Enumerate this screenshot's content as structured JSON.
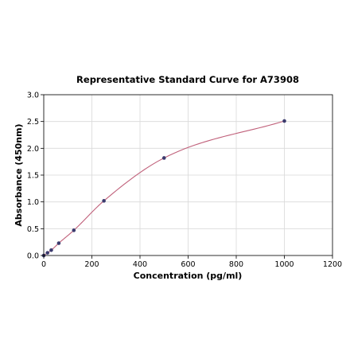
{
  "chart_data": {
    "type": "scatter",
    "title": "Representative Standard Curve for A73908",
    "xlabel": "Concentration (pg/ml)",
    "ylabel": "Absorbance (450nm)",
    "xlim": [
      0,
      1200
    ],
    "ylim": [
      0,
      3.0
    ],
    "xticks": [
      0,
      200,
      400,
      600,
      800,
      1000,
      1200
    ],
    "yticks": [
      0.0,
      0.5,
      1.0,
      1.5,
      2.0,
      2.5,
      3.0
    ],
    "xtick_labels": [
      "0",
      "200",
      "400",
      "600",
      "800",
      "1000",
      "1200"
    ],
    "ytick_labels": [
      "0.0",
      "0.5",
      "1.0",
      "1.5",
      "2.0",
      "2.5",
      "3.0"
    ],
    "grid": true,
    "series": [
      {
        "x": [
          0,
          15.6,
          31.25,
          62.5,
          125,
          250,
          500,
          1000
        ],
        "y": [
          0.0,
          0.05,
          0.1,
          0.23,
          0.47,
          1.02,
          1.82,
          2.51
        ]
      }
    ],
    "fit_curve": {
      "type": "4PL",
      "color": "#c0607a"
    },
    "colors": {
      "points": "#3b3b6e",
      "curve": "#c0607a",
      "grid": "#d9d9d9"
    }
  }
}
